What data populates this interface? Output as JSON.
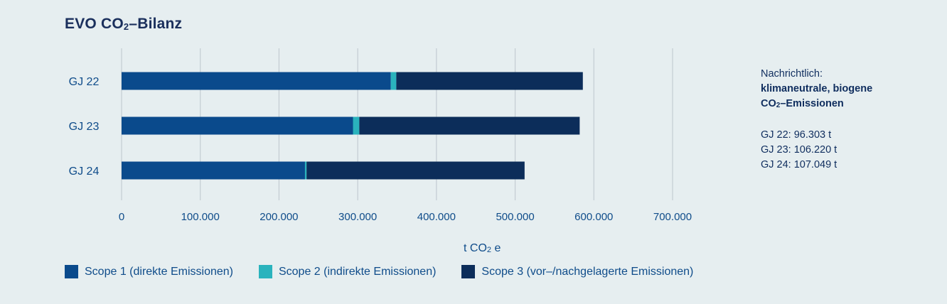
{
  "chart_data": {
    "type": "bar",
    "orientation": "horizontal",
    "stacked": true,
    "title": {
      "prefix": "EVO CO",
      "sub": "2",
      "suffix": "–Bilanz"
    },
    "categories": [
      "GJ 22",
      "GJ 23",
      "GJ 24"
    ],
    "series": [
      {
        "name": "Scope 1 (direkte Emissionen)",
        "color": "#0a4a8c",
        "values": [
          342000,
          294000,
          233000
        ]
      },
      {
        "name": "Scope 2 (indirekte Emissionen)",
        "color": "#2ab3bd",
        "values": [
          7000,
          8000,
          2000
        ]
      },
      {
        "name": "Scope 3 (vor-/nachgelagerte Emissionen)",
        "color": "#0c2d5a",
        "values": [
          237000,
          280000,
          277000
        ]
      }
    ],
    "legend_labels": [
      "Scope 1 (direkte Emissionen)",
      "Scope 2 (indirekte Emissionen)",
      "Scope 3 (vor–/nachgelagerte Emissionen)"
    ],
    "xlim": [
      0,
      700000
    ],
    "xticks": [
      0,
      100000,
      200000,
      300000,
      400000,
      500000,
      600000,
      700000
    ],
    "xtick_labels": [
      "0",
      "100.000",
      "200.000",
      "300.000",
      "400.000",
      "500.000",
      "600.000",
      "700.000"
    ],
    "xlabel": {
      "prefix": "t CO",
      "sub": "2",
      "suffix": " e"
    },
    "grid": true,
    "legend_position": "bottom-left"
  },
  "note": {
    "heading": "Nachrichtlich:",
    "bold_line1": "klimaneutrale, biogene",
    "bold_line2_prefix": "CO",
    "bold_line2_sub": "2",
    "bold_line2_suffix": "–Emissionen",
    "values": [
      "GJ 22: 96.303 t",
      "GJ 23: 106.220 t",
      "GJ 24: 107.049 t"
    ]
  }
}
